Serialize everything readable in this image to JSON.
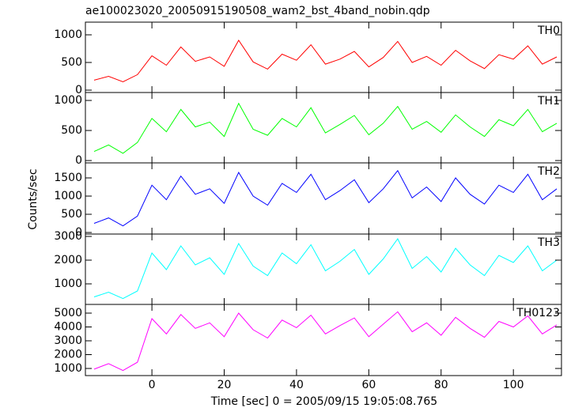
{
  "title": "ae100023020_20050915190508_wam2_bst_4band_nobin.qdp",
  "xlabel": "Time [sec] 0 = 2005/09/15 19:05:08.765",
  "ylabel": "Counts/sec",
  "chart_data": [
    {
      "type": "line",
      "ylim": [
        -43,
        1229
      ],
      "yticks": [
        0,
        500,
        1000
      ],
      "x": [
        -16,
        -12,
        -8,
        -4,
        0,
        4,
        8,
        12,
        16,
        20,
        24,
        28,
        32,
        36,
        40,
        44,
        48,
        52,
        56,
        60,
        64,
        68,
        72,
        76,
        80,
        84,
        88,
        92,
        96,
        100,
        104,
        108,
        112
      ],
      "series": [
        {
          "name": "TH0",
          "color": "#ff0000",
          "values": [
            180,
            250,
            150,
            280,
            620,
            450,
            780,
            520,
            600,
            430,
            900,
            510,
            380,
            650,
            540,
            820,
            470,
            560,
            700,
            420,
            590,
            880,
            500,
            610,
            450,
            720,
            530,
            390,
            640,
            560,
            800,
            470,
            600
          ]
        }
      ]
    },
    {
      "type": "line",
      "ylim": [
        -39,
        1132
      ],
      "yticks": [
        0,
        500,
        1000
      ],
      "x": [
        -16,
        -12,
        -8,
        -4,
        0,
        4,
        8,
        12,
        16,
        20,
        24,
        28,
        32,
        36,
        40,
        44,
        48,
        52,
        56,
        60,
        64,
        68,
        72,
        76,
        80,
        84,
        88,
        92,
        96,
        100,
        104,
        108,
        112
      ],
      "series": [
        {
          "name": "TH1",
          "color": "#00ff00",
          "values": [
            150,
            260,
            120,
            300,
            700,
            480,
            850,
            560,
            640,
            400,
            950,
            520,
            420,
            700,
            560,
            880,
            460,
            600,
            750,
            430,
            620,
            900,
            520,
            650,
            470,
            760,
            560,
            400,
            680,
            580,
            850,
            480,
            620
          ]
        }
      ]
    },
    {
      "type": "line",
      "ylim": [
        -43,
        1913
      ],
      "yticks": [
        0,
        500,
        1000,
        1500
      ],
      "x": [
        -16,
        -12,
        -8,
        -4,
        0,
        4,
        8,
        12,
        16,
        20,
        24,
        28,
        32,
        36,
        40,
        44,
        48,
        52,
        56,
        60,
        64,
        68,
        72,
        76,
        80,
        84,
        88,
        92,
        96,
        100,
        104,
        108,
        112
      ],
      "series": [
        {
          "name": "TH2",
          "color": "#0000ff",
          "values": [
            250,
            400,
            180,
            450,
            1300,
            900,
            1550,
            1050,
            1200,
            800,
            1650,
            1000,
            750,
            1350,
            1100,
            1600,
            900,
            1150,
            1450,
            820,
            1200,
            1700,
            950,
            1250,
            850,
            1500,
            1050,
            780,
            1300,
            1100,
            1600,
            900,
            1200
          ]
        }
      ]
    },
    {
      "type": "line",
      "ylim": [
        133,
        3100
      ],
      "yticks": [
        1000,
        2000,
        3000
      ],
      "x": [
        -16,
        -12,
        -8,
        -4,
        0,
        4,
        8,
        12,
        16,
        20,
        24,
        28,
        32,
        36,
        40,
        44,
        48,
        52,
        56,
        60,
        64,
        68,
        72,
        76,
        80,
        84,
        88,
        92,
        96,
        100,
        104,
        108,
        112
      ],
      "series": [
        {
          "name": "TH3",
          "color": "#00ffff",
          "values": [
            450,
            650,
            380,
            700,
            2300,
            1600,
            2600,
            1800,
            2100,
            1400,
            2700,
            1750,
            1350,
            2300,
            1850,
            2650,
            1550,
            1950,
            2450,
            1400,
            2050,
            2900,
            1650,
            2150,
            1500,
            2500,
            1800,
            1350,
            2200,
            1900,
            2600,
            1550,
            2000
          ]
        }
      ]
    },
    {
      "type": "line",
      "ylim": [
        486,
        5629
      ],
      "yticks": [
        1000,
        2000,
        3000,
        4000,
        5000
      ],
      "xlim": [
        -18.4,
        113.3
      ],
      "xticks": [
        0,
        20,
        40,
        60,
        80,
        100
      ],
      "x": [
        -16,
        -12,
        -8,
        -4,
        0,
        4,
        8,
        12,
        16,
        20,
        24,
        28,
        32,
        36,
        40,
        44,
        48,
        52,
        56,
        60,
        64,
        68,
        72,
        76,
        80,
        84,
        88,
        92,
        96,
        100,
        104,
        108,
        112
      ],
      "series": [
        {
          "name": "TH0123",
          "color": "#ff00ff",
          "values": [
            950,
            1350,
            850,
            1450,
            4600,
            3500,
            4900,
            3900,
            4300,
            3300,
            5000,
            3800,
            3200,
            4500,
            3950,
            4850,
            3500,
            4100,
            4650,
            3300,
            4200,
            5100,
            3650,
            4300,
            3400,
            4700,
            3900,
            3250,
            4400,
            4000,
            4800,
            3500,
            4150
          ]
        }
      ]
    }
  ]
}
